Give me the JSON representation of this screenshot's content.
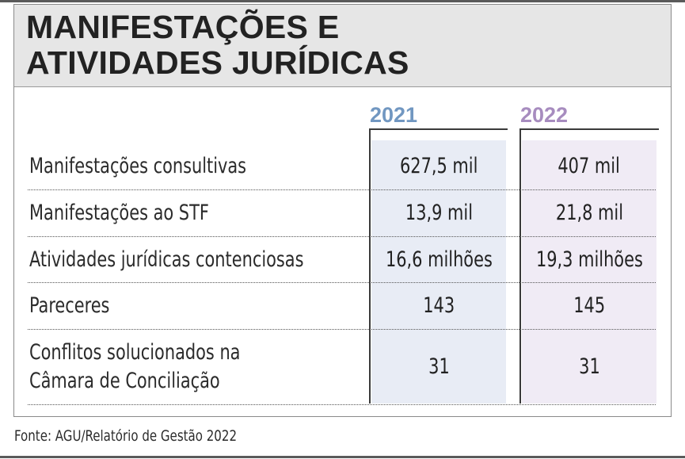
{
  "title": {
    "line1": "MANIFESTAÇÕES E",
    "line2": "ATIVIDADES JURÍDICAS"
  },
  "columns": [
    {
      "year": "2021",
      "color": "#7197c1"
    },
    {
      "year": "2022",
      "color": "#a78cbf"
    }
  ],
  "rows": [
    {
      "label_line1": "Manifestações consultivas",
      "label_line2": "",
      "v2021": "627,5 mil",
      "v2022": "407 mil"
    },
    {
      "label_line1": "Manifestações ao STF",
      "label_line2": "",
      "v2021": "13,9 mil",
      "v2022": "21,8 mil"
    },
    {
      "label_line1": "Atividades jurídicas contenciosas",
      "label_line2": "",
      "v2021": "16,6 milhões",
      "v2022": "19,3 milhões"
    },
    {
      "label_line1": "Pareceres",
      "label_line2": "",
      "v2021": "143",
      "v2022": "145"
    },
    {
      "label_line1": "Conflitos solucionados na",
      "label_line2": "Câmara de Conciliação",
      "v2021": "31",
      "v2022": "31"
    }
  ],
  "source": "Fonte: AGU/Relatório de Gestão 2022"
}
